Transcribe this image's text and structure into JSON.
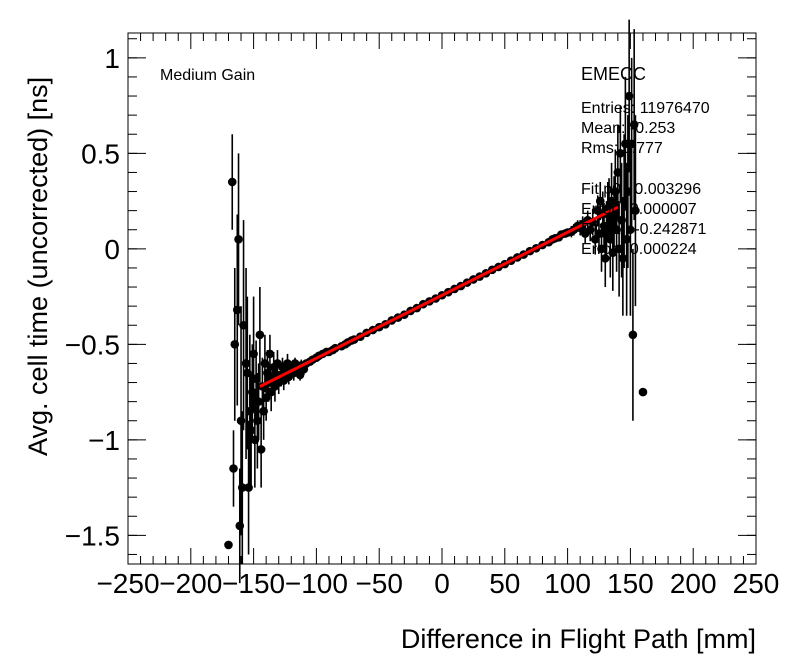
{
  "chart_data": {
    "type": "scatter",
    "title": "",
    "xlabel": "Difference in Flight Path [mm]",
    "ylabel": "Avg. cell time (uncorrected) [ns]",
    "xlim": [
      -250,
      250
    ],
    "ylim": [
      -1.65,
      1.13
    ],
    "xticks": [
      -250,
      -200,
      -150,
      -100,
      -50,
      0,
      50,
      100,
      150,
      200,
      250
    ],
    "xtick_labels": [
      "−250",
      "−200",
      "−150",
      "−100",
      "−50",
      "0",
      "50",
      "100",
      "150",
      "200",
      "250"
    ],
    "yticks": [
      -1.5,
      -1,
      -0.5,
      0,
      0.5,
      1
    ],
    "ytick_labels": [
      "−1.5",
      "−1",
      "−0.5",
      "0",
      "0.5",
      "1"
    ],
    "gain_label": "Medium Gain",
    "detector_label": "EMECC",
    "stats": [
      "Entries: 11976470",
      "Mean: -0.253",
      "Rms: 0.777"
    ],
    "fit_stats": [
      "Fit p0 : 0.003296",
      "Error : 0.000007",
      "Fit p1 : -0.242871",
      "Error : 0.000224"
    ],
    "fit": {
      "slope": 0.003296,
      "intercept": -0.242871,
      "x_range": [
        -145,
        140
      ],
      "color": "#ff0000"
    },
    "marker_color": "#000000",
    "series": [
      {
        "name": "data",
        "points": [
          [
            -170,
            -1.55,
            0.0
          ],
          [
            -167,
            0.35,
            0.25
          ],
          [
            -166,
            -1.15,
            0.2
          ],
          [
            -165,
            -0.5,
            0.4
          ],
          [
            -163,
            -0.32,
            0.5
          ],
          [
            -162,
            0.05,
            0.45
          ],
          [
            -161,
            -1.45,
            0.3
          ],
          [
            -160,
            -0.9,
            0.6
          ],
          [
            -159,
            -1.25,
            0.4
          ],
          [
            -158,
            -0.4,
            0.55
          ],
          [
            -156,
            -0.6,
            0.5
          ],
          [
            -155,
            -0.65,
            0.4
          ],
          [
            -154,
            -1.25,
            0.35
          ],
          [
            -153,
            -0.85,
            0.4
          ],
          [
            -152,
            -0.95,
            0.3
          ],
          [
            -151,
            -0.75,
            0.25
          ],
          [
            -150,
            -0.55,
            0.3
          ],
          [
            -149,
            -1.0,
            0.25
          ],
          [
            -148,
            -0.68,
            0.2
          ],
          [
            -147,
            -0.9,
            0.25
          ],
          [
            -146,
            -0.8,
            0.2
          ],
          [
            -145,
            -0.45,
            0.25
          ],
          [
            -144,
            -1.05,
            0.2
          ],
          [
            -143,
            -0.72,
            0.15
          ],
          [
            -142,
            -0.85,
            0.15
          ],
          [
            -141,
            -0.6,
            0.15
          ],
          [
            -140,
            -0.78,
            0.12
          ],
          [
            -139,
            -0.65,
            0.12
          ],
          [
            -138,
            -0.7,
            0.1
          ],
          [
            -137,
            -0.55,
            0.1
          ],
          [
            -136,
            -0.75,
            0.1
          ],
          [
            -135,
            -0.68,
            0.08
          ],
          [
            -134,
            -0.62,
            0.08
          ],
          [
            -133,
            -0.72,
            0.08
          ],
          [
            -132,
            -0.66,
            0.07
          ],
          [
            -131,
            -0.6,
            0.07
          ],
          [
            -130,
            -0.7,
            0.06
          ],
          [
            -128,
            -0.66,
            0.06
          ],
          [
            -127,
            -0.62,
            0.05
          ],
          [
            -126,
            -0.69,
            0.05
          ],
          [
            -124,
            -0.64,
            0.05
          ],
          [
            -123,
            -0.6,
            0.05
          ],
          [
            -122,
            -0.67,
            0.04
          ],
          [
            -120,
            -0.63,
            0.04
          ],
          [
            -118,
            -0.65,
            0.04
          ],
          [
            -117,
            -0.6,
            0.03
          ],
          [
            -115,
            -0.62,
            0.03
          ],
          [
            -113,
            -0.66,
            0.03
          ],
          [
            -112,
            -0.61,
            0.03
          ],
          [
            -110,
            -0.63,
            0.03
          ],
          [
            -108,
            -0.6,
            0.02
          ],
          [
            -105,
            -0.59,
            0.02
          ],
          [
            -103,
            -0.58,
            0.02
          ],
          [
            -100,
            -0.57,
            0.02
          ],
          [
            -98,
            -0.56,
            0.02
          ],
          [
            -95,
            -0.55,
            0.02
          ],
          [
            -92,
            -0.54,
            0.02
          ],
          [
            -90,
            -0.54,
            0.02
          ],
          [
            -87,
            -0.53,
            0.02
          ],
          [
            -85,
            -0.52,
            0.02
          ],
          [
            -80,
            -0.51,
            0.01
          ],
          [
            -77,
            -0.5,
            0.01
          ],
          [
            -75,
            -0.49,
            0.01
          ],
          [
            -72,
            -0.48,
            0.01
          ],
          [
            -70,
            -0.475,
            0.01
          ],
          [
            -65,
            -0.46,
            0.01
          ],
          [
            -60,
            -0.44,
            0.01
          ],
          [
            -55,
            -0.425,
            0.01
          ],
          [
            -50,
            -0.41,
            0.01
          ],
          [
            -45,
            -0.395,
            0.01
          ],
          [
            -40,
            -0.375,
            0.01
          ],
          [
            -35,
            -0.36,
            0.01
          ],
          [
            -30,
            -0.345,
            0.01
          ],
          [
            -25,
            -0.325,
            0.01
          ],
          [
            -20,
            -0.31,
            0.01
          ],
          [
            -15,
            -0.29,
            0.01
          ],
          [
            -10,
            -0.275,
            0.01
          ],
          [
            -5,
            -0.26,
            0.01
          ],
          [
            0,
            -0.243,
            0.01
          ],
          [
            5,
            -0.227,
            0.01
          ],
          [
            10,
            -0.21,
            0.01
          ],
          [
            15,
            -0.195,
            0.01
          ],
          [
            20,
            -0.177,
            0.01
          ],
          [
            25,
            -0.16,
            0.01
          ],
          [
            30,
            -0.145,
            0.01
          ],
          [
            35,
            -0.128,
            0.01
          ],
          [
            40,
            -0.11,
            0.01
          ],
          [
            45,
            -0.095,
            0.01
          ],
          [
            50,
            -0.08,
            0.01
          ],
          [
            55,
            -0.062,
            0.01
          ],
          [
            60,
            -0.045,
            0.01
          ],
          [
            65,
            -0.03,
            0.01
          ],
          [
            70,
            -0.012,
            0.01
          ],
          [
            75,
            0.003,
            0.01
          ],
          [
            80,
            0.02,
            0.01
          ],
          [
            85,
            0.035,
            0.01
          ],
          [
            88,
            0.05,
            0.02
          ],
          [
            90,
            0.055,
            0.02
          ],
          [
            93,
            0.06,
            0.02
          ],
          [
            95,
            0.075,
            0.02
          ],
          [
            98,
            0.08,
            0.02
          ],
          [
            100,
            0.085,
            0.02
          ],
          [
            103,
            0.09,
            0.03
          ],
          [
            105,
            0.1,
            0.03
          ],
          [
            108,
            0.12,
            0.03
          ],
          [
            110,
            0.11,
            0.04
          ],
          [
            112,
            0.13,
            0.04
          ],
          [
            114,
            0.08,
            0.05
          ],
          [
            116,
            0.15,
            0.05
          ],
          [
            118,
            0.1,
            0.06
          ],
          [
            120,
            0.14,
            0.07
          ],
          [
            122,
            0.05,
            0.08
          ],
          [
            124,
            0.2,
            0.08
          ],
          [
            125,
            0.08,
            0.1
          ],
          [
            126,
            0.25,
            0.1
          ],
          [
            127,
            0.0,
            0.12
          ],
          [
            128,
            0.18,
            0.12
          ],
          [
            129,
            0.12,
            0.12
          ],
          [
            130,
            -0.05,
            0.15
          ],
          [
            131,
            0.1,
            0.15
          ],
          [
            132,
            0.2,
            0.15
          ],
          [
            133,
            0.22,
            0.15
          ],
          [
            134,
            0.05,
            0.2
          ],
          [
            135,
            0.25,
            0.2
          ],
          [
            136,
            -0.02,
            0.2
          ],
          [
            137,
            0.18,
            0.2
          ],
          [
            138,
            0.3,
            0.22
          ],
          [
            139,
            0.1,
            0.22
          ],
          [
            140,
            0.4,
            0.25
          ],
          [
            141,
            0.0,
            0.25
          ],
          [
            142,
            0.5,
            0.25
          ],
          [
            143,
            0.15,
            0.3
          ],
          [
            144,
            -0.05,
            0.3
          ],
          [
            145,
            0.25,
            0.35
          ],
          [
            146,
            0.55,
            0.35
          ],
          [
            147,
            0.05,
            0.4
          ],
          [
            148,
            0.3,
            0.4
          ],
          [
            149,
            0.8,
            0.4
          ],
          [
            150,
            0.1,
            0.45
          ],
          [
            151,
            0.55,
            0.45
          ],
          [
            152,
            -0.45,
            0.45
          ],
          [
            153,
            0.65,
            0.5
          ],
          [
            154,
            0.2,
            0.5
          ],
          [
            160,
            -0.75,
            0.0
          ]
        ]
      }
    ]
  }
}
